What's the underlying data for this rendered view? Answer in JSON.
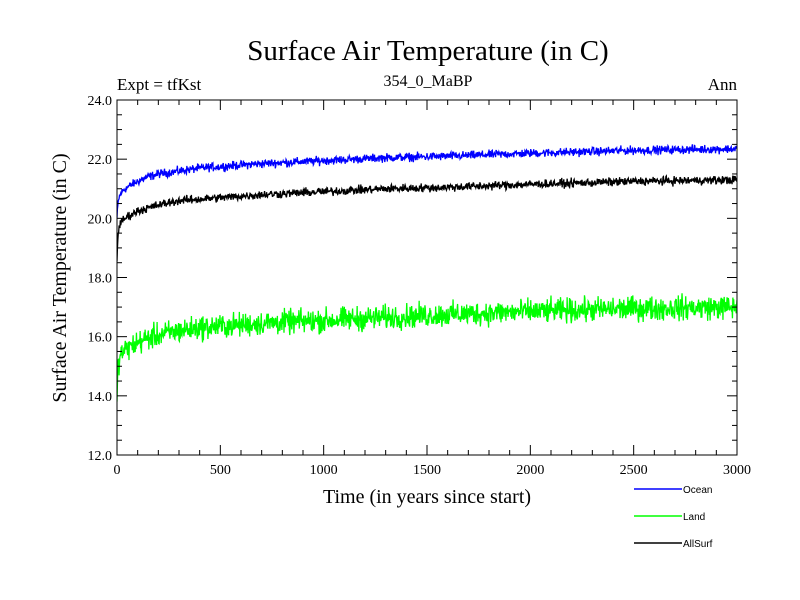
{
  "chart_data": {
    "type": "line",
    "title": "Surface Air Temperature (in C)",
    "subtitle": "354_0_MaBP",
    "left_label": "Expt = tfKst",
    "right_label": "Ann",
    "xlabel": "Time (in years since start)",
    "ylabel": "Surface Air Temperature (in C)",
    "xlim": [
      0,
      3000
    ],
    "ylim": [
      12.0,
      24.0
    ],
    "x_ticks": [
      0,
      500,
      1000,
      1500,
      2000,
      2500,
      3000
    ],
    "x_tick_labels": [
      "0",
      "500",
      "1000",
      "1500",
      "2000",
      "2500",
      "3000"
    ],
    "y_ticks": [
      12.0,
      14.0,
      16.0,
      18.0,
      20.0,
      22.0,
      24.0
    ],
    "y_tick_labels": [
      "12.0",
      "14.0",
      "16.0",
      "18.0",
      "20.0",
      "22.0",
      "24.0"
    ],
    "grid": false,
    "legend_position": "bottom-right",
    "series": [
      {
        "name": "Ocean",
        "color": "#0000ff",
        "noise": 0.07,
        "x": [
          0,
          5,
          10,
          20,
          30,
          50,
          75,
          100,
          150,
          200,
          300,
          400,
          500,
          700,
          1000,
          1300,
          1600,
          2000,
          2500,
          3000
        ],
        "values": [
          20.0,
          20.5,
          20.7,
          20.85,
          20.95,
          21.05,
          21.15,
          21.25,
          21.4,
          21.5,
          21.6,
          21.7,
          21.75,
          21.85,
          21.95,
          22.05,
          22.1,
          22.2,
          22.3,
          22.35
        ]
      },
      {
        "name": "Land",
        "color": "#00ff00",
        "noise": 0.2,
        "x": [
          0,
          5,
          10,
          20,
          30,
          50,
          75,
          100,
          150,
          200,
          300,
          400,
          500,
          700,
          1000,
          1300,
          1600,
          2000,
          2500,
          3000
        ],
        "values": [
          14.0,
          14.9,
          15.2,
          15.4,
          15.5,
          15.6,
          15.7,
          15.8,
          15.95,
          16.05,
          16.2,
          16.3,
          16.35,
          16.45,
          16.55,
          16.65,
          16.75,
          16.85,
          16.95,
          17.0
        ]
      },
      {
        "name": "AllSurf",
        "color": "#000000",
        "noise": 0.07,
        "x": [
          0,
          5,
          10,
          20,
          30,
          50,
          75,
          100,
          150,
          200,
          300,
          400,
          500,
          700,
          1000,
          1300,
          1600,
          2000,
          2500,
          3000
        ],
        "values": [
          18.6,
          19.5,
          19.7,
          19.85,
          19.95,
          20.05,
          20.15,
          20.25,
          20.35,
          20.45,
          20.6,
          20.65,
          20.7,
          20.8,
          20.9,
          21.0,
          21.05,
          21.15,
          21.25,
          21.3
        ]
      }
    ]
  }
}
